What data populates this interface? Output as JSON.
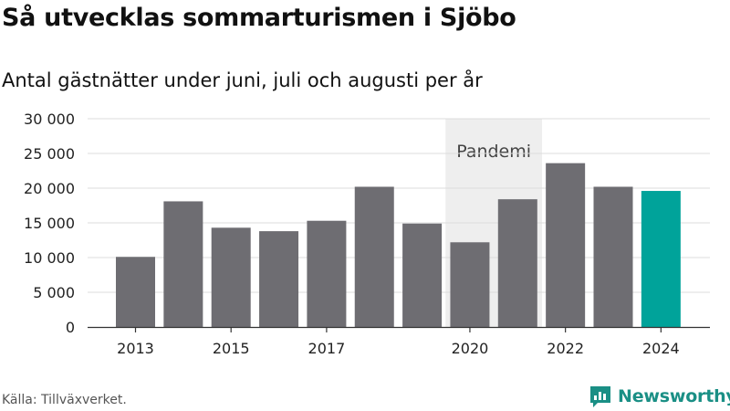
{
  "header": {
    "title": "Så utvecklas sommarturismen i Sjöbo",
    "subtitle": "Antal gästnätter under juni, juli och augusti per år"
  },
  "footer": {
    "source": "Källa: Tillväxverket.",
    "brand": "Newsworthy"
  },
  "colors": {
    "bar": "#6e6d72",
    "highlight": "#00a39a",
    "band": "#eeeeee",
    "brand": "#1a8f85"
  },
  "chart_data": {
    "type": "bar",
    "title": "Så utvecklas sommarturismen i Sjöbo",
    "subtitle": "Antal gästnätter under juni, juli och augusti per år",
    "xlabel": "",
    "ylabel": "",
    "categories": [
      "2013",
      "2014",
      "2015",
      "2016",
      "2017",
      "2018",
      "2019",
      "2020",
      "2021",
      "2022",
      "2023",
      "2024"
    ],
    "values": [
      10100,
      18100,
      14300,
      13800,
      15300,
      20200,
      14900,
      12200,
      18400,
      23600,
      20200,
      19600
    ],
    "x_tick_labels": [
      "2013",
      "2015",
      "2017",
      "2020",
      "2022",
      "2024"
    ],
    "ylim": [
      0,
      30000
    ],
    "y_ticks": [
      0,
      5000,
      10000,
      15000,
      20000,
      25000,
      30000
    ],
    "y_tick_labels": [
      "0",
      "5 000",
      "10 000",
      "15 000",
      "20 000",
      "25 000",
      "30 000"
    ],
    "highlight_category": "2024",
    "annotations": [
      {
        "label": "Pandemi",
        "from": "2020",
        "to": "2021"
      }
    ],
    "grid": true,
    "legend": "none"
  }
}
